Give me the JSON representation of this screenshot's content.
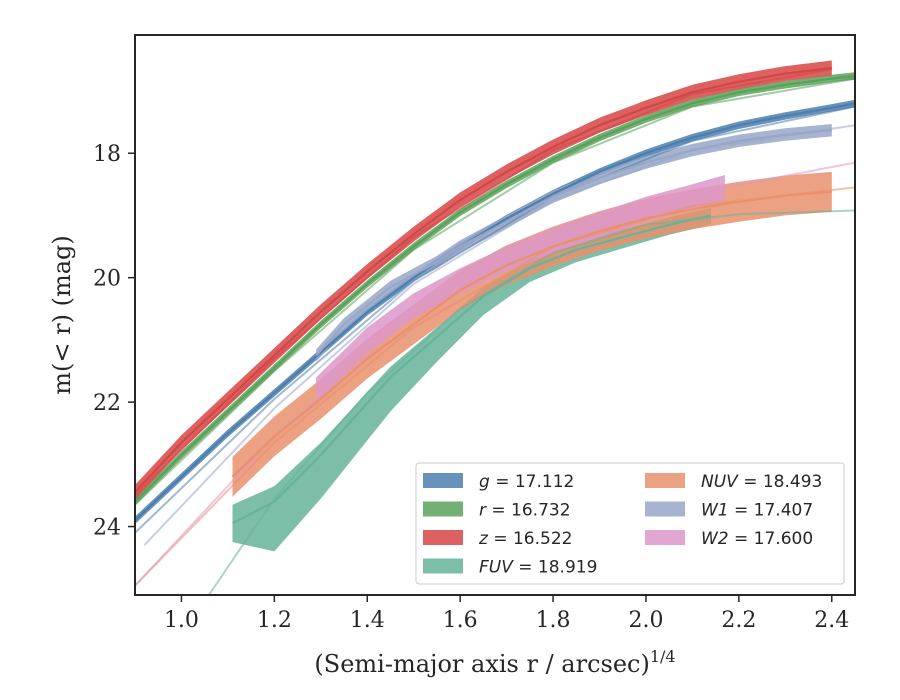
{
  "chart_data": {
    "type": "line",
    "xlabel": "(Semi-major axis r / arcsec)",
    "xlabel_sup": "1/4",
    "ylabel": "m(< r) (mag)",
    "xlim": [
      0.9,
      2.45
    ],
    "ylim": [
      25.1,
      16.1
    ],
    "y_inverted": true,
    "grid": false,
    "legend_position": "lower-right",
    "xticks": [
      1.0,
      1.2,
      1.4,
      1.6,
      1.8,
      2.0,
      2.2,
      2.4
    ],
    "xtick_labels": [
      "1.0",
      "1.2",
      "1.4",
      "1.6",
      "1.8",
      "2.0",
      "2.2",
      "2.4"
    ],
    "yticks": [
      18,
      20,
      22,
      24
    ],
    "ytick_labels": [
      "18",
      "20",
      "22",
      "24"
    ],
    "series": [
      {
        "name": "g = 17.112",
        "label_var": "g",
        "label_val": "= 17.112",
        "color": "#4c7fae",
        "x": [
          0.9,
          1.0,
          1.1,
          1.2,
          1.3,
          1.4,
          1.5,
          1.6,
          1.7,
          1.8,
          1.9,
          2.0,
          2.1,
          2.2,
          2.3,
          2.4,
          2.45
        ],
        "y": [
          23.9,
          23.2,
          22.5,
          21.85,
          21.2,
          20.55,
          20.0,
          19.5,
          19.05,
          18.65,
          18.3,
          18.0,
          17.75,
          17.55,
          17.4,
          17.27,
          17.2
        ],
        "band": 0.06,
        "fit_x": [
          0.9,
          1.2,
          1.5,
          1.8,
          2.1,
          2.45
        ],
        "fit_y": [
          24.1,
          21.95,
          20.05,
          18.7,
          17.8,
          17.25
        ]
      },
      {
        "name": "r = 16.732",
        "label_var": "r",
        "label_val": "= 16.732",
        "color": "#5aa25a",
        "x": [
          0.9,
          1.0,
          1.1,
          1.2,
          1.3,
          1.4,
          1.5,
          1.6,
          1.7,
          1.8,
          1.9,
          2.0,
          2.1,
          2.2,
          2.3,
          2.4,
          2.45
        ],
        "y": [
          23.6,
          22.85,
          22.15,
          21.45,
          20.75,
          20.1,
          19.5,
          18.95,
          18.5,
          18.1,
          17.75,
          17.45,
          17.2,
          17.02,
          16.9,
          16.8,
          16.76
        ],
        "band": 0.06,
        "fit_x": [
          0.9,
          1.2,
          1.5,
          1.8,
          2.1,
          2.45
        ],
        "fit_y": [
          23.65,
          21.5,
          19.55,
          18.15,
          17.25,
          16.8
        ]
      },
      {
        "name": "z = 16.522",
        "label_var": "z",
        "label_val": "= 16.522",
        "color": "#d64545",
        "x": [
          0.9,
          1.0,
          1.1,
          1.2,
          1.3,
          1.4,
          1.5,
          1.6,
          1.7,
          1.8,
          1.9,
          2.0,
          2.1,
          2.2,
          2.3,
          2.4
        ],
        "y": [
          23.45,
          22.65,
          21.95,
          21.25,
          20.55,
          19.9,
          19.3,
          18.75,
          18.3,
          17.9,
          17.55,
          17.27,
          17.02,
          16.85,
          16.72,
          16.63
        ],
        "band": 0.12,
        "fit_x": [
          0.9,
          1.2,
          1.5,
          1.8,
          2.1,
          2.4
        ],
        "fit_y": [
          23.5,
          21.3,
          19.35,
          17.95,
          17.05,
          16.65
        ]
      },
      {
        "name": "FUV = 18.919",
        "label_var": "FUV",
        "label_val": "= 18.919",
        "color": "#66b39a",
        "x": [
          1.11,
          1.2,
          1.3,
          1.45,
          1.55,
          1.65,
          1.75,
          1.85,
          1.95,
          2.05,
          2.14
        ],
        "y": [
          23.95,
          23.6,
          22.85,
          21.6,
          20.95,
          20.3,
          19.85,
          19.55,
          19.35,
          19.15,
          19.0
        ],
        "band_lo": [
          0.3,
          0.8,
          0.7,
          0.55,
          0.4,
          0.3,
          0.22,
          0.2,
          0.18,
          0.16,
          0.15
        ],
        "band_hi": [
          0.3,
          0.25,
          0.2,
          0.17,
          0.15,
          0.14,
          0.13,
          0.12,
          0.12,
          0.12,
          0.12
        ],
        "fit_x": [
          1.05,
          1.2,
          1.4,
          1.6,
          1.8,
          2.0,
          2.2,
          2.45
        ],
        "fit_y": [
          25.2,
          23.55,
          21.85,
          20.5,
          19.6,
          19.15,
          18.98,
          18.92
        ]
      },
      {
        "name": "NUV = 18.493",
        "label_var": "NUV",
        "label_val": "= 18.493",
        "color": "#e9906d",
        "x": [
          1.11,
          1.2,
          1.3,
          1.4,
          1.5,
          1.6,
          1.7,
          1.8,
          1.9,
          2.0,
          2.1,
          2.2,
          2.3,
          2.4
        ],
        "y": [
          23.2,
          22.55,
          21.95,
          21.3,
          20.75,
          20.2,
          19.8,
          19.5,
          19.25,
          19.05,
          18.9,
          18.78,
          18.68,
          18.62
        ],
        "band": 0.32,
        "fit_x": [
          0.9,
          1.2,
          1.5,
          1.8,
          2.1,
          2.45
        ],
        "fit_y": [
          24.95,
          22.65,
          20.8,
          19.5,
          18.85,
          18.55
        ]
      },
      {
        "name": "W1 = 17.407",
        "label_var": "W1",
        "label_val": "= 17.407",
        "color": "#98a7c8",
        "x": [
          1.29,
          1.35,
          1.45,
          1.55,
          1.6,
          1.7,
          1.8,
          1.9,
          2.0,
          2.1,
          2.2,
          2.3,
          2.4
        ],
        "y": [
          21.25,
          20.75,
          20.15,
          19.75,
          19.5,
          19.1,
          18.7,
          18.4,
          18.15,
          17.95,
          17.8,
          17.7,
          17.63
        ],
        "band": 0.1,
        "fit_x": [
          0.92,
          1.2,
          1.5,
          1.8,
          2.1,
          2.45
        ],
        "fit_y": [
          24.3,
          22.1,
          20.1,
          18.75,
          17.95,
          17.55
        ]
      },
      {
        "name": "W2 = 17.600",
        "label_var": "W2",
        "label_val": "= 17.600",
        "color": "#dd98c8",
        "x": [
          1.29,
          1.4,
          1.5,
          1.6,
          1.7,
          1.8,
          1.9,
          2.0,
          2.1,
          2.17
        ],
        "y": [
          21.8,
          21.0,
          20.45,
          20.05,
          19.7,
          19.4,
          19.15,
          18.9,
          18.7,
          18.55
        ],
        "band": 0.2,
        "fit_x": [
          0.9,
          1.2,
          1.5,
          1.8,
          2.1,
          2.45
        ],
        "fit_y": [
          24.95,
          22.55,
          20.6,
          19.35,
          18.65,
          18.15
        ]
      }
    ]
  }
}
